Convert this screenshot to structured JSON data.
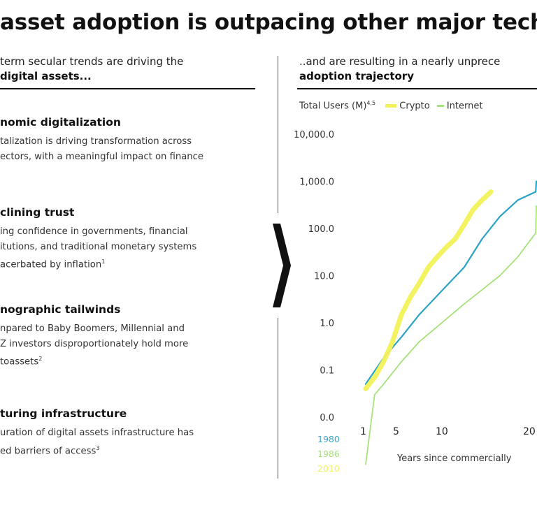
{
  "page": {
    "title": "asset adoption is outpacing other major techn"
  },
  "left": {
    "heading_line1": "term secular trends are driving the",
    "heading_line2": "digital assets...",
    "trends": [
      {
        "title": "nomic digitalization",
        "lines": [
          "talization is driving transformation across",
          "ectors, with a meaningful impact on finance"
        ]
      },
      {
        "title": "clining trust",
        "lines": [
          "ing confidence in governments, financial",
          "itutions, and traditional monetary systems",
          "acerbated by inflation"
        ],
        "note": "1"
      },
      {
        "title": "nographic tailwinds",
        "lines": [
          "npared to Baby Boomers, Millennial and",
          "Z investors disproportionately hold more",
          "toassets"
        ],
        "note": "2"
      },
      {
        "title": "turing infrastructure",
        "lines": [
          "uration of digital assets infrastructure has",
          "ed barriers of access"
        ],
        "note": "3"
      }
    ]
  },
  "right": {
    "heading_line1": "..and are resulting in a nearly unprece",
    "heading_line2": "adoption trajectory",
    "legend_label": "Total Users (M)",
    "legend_note": "4,5",
    "legend_crypto": "Crypto",
    "legend_internet": "Internet"
  },
  "colors": {
    "crypto": "#f2f25a",
    "internet": "#a6e27a",
    "teal": "#2ba3c4",
    "year_1980": "#3aa8cc",
    "year_1986": "#a6e27a",
    "year_2010": "#f2f25a"
  },
  "chart_data": {
    "type": "line",
    "title": "",
    "xlabel": "Years since commercially",
    "ylabel": "Total Users (M)",
    "y_scale": "log",
    "y_ticks": [
      "10,000.0",
      "1,000.0",
      "100.0",
      "10.0",
      "1.0",
      "0.1",
      "0.0"
    ],
    "x_ticks": [
      "1",
      "5",
      "10",
      "20"
    ],
    "start_years": [
      "1980",
      "1986",
      "2010"
    ],
    "series": [
      {
        "name": "Crypto",
        "x": [
          1,
          2,
          3,
          4,
          5,
          6,
          7,
          8,
          9,
          10,
          11,
          12,
          13,
          14,
          15
        ],
        "y": [
          0.04,
          0.07,
          0.15,
          0.4,
          1.5,
          3.5,
          7,
          15,
          25,
          40,
          60,
          120,
          250,
          400,
          600
        ]
      },
      {
        "x": [
          1,
          3,
          5,
          7,
          10,
          12,
          14,
          16,
          18,
          20,
          22
        ],
        "y": [
          0.05,
          0.18,
          0.5,
          1.5,
          6,
          15,
          60,
          180,
          400,
          600,
          1000
        ]
      },
      {
        "name": "Internet",
        "x": [
          1,
          2,
          3,
          5,
          7,
          10,
          12,
          14,
          16,
          18,
          20,
          22
        ],
        "y": [
          0.001,
          0.03,
          0.05,
          0.15,
          0.4,
          1.2,
          2.5,
          5,
          10,
          25,
          80,
          300
        ]
      }
    ]
  }
}
